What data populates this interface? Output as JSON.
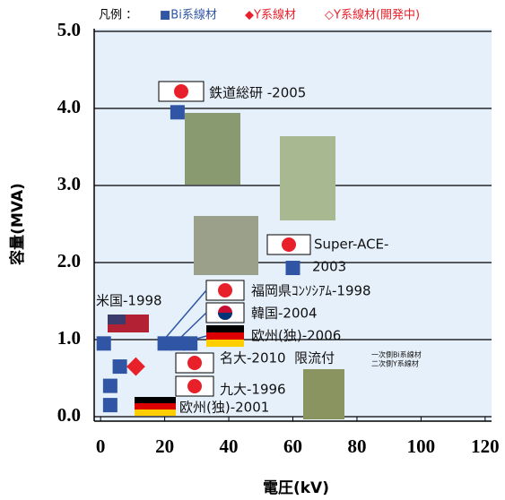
{
  "chart_data": {
    "type": "scatter",
    "x_label": "電圧(kV)",
    "y_label": "容量(MVA)",
    "legend_title": "凡例 ：",
    "xlim": [
      -2,
      122
    ],
    "ylim": [
      0,
      5
    ],
    "xticks": [
      0,
      20,
      40,
      60,
      80,
      100,
      120
    ],
    "yticks": [
      {
        "value": 0,
        "label": "0.0"
      },
      {
        "value": 1,
        "label": "1.0"
      },
      {
        "value": 2,
        "label": "2.0"
      },
      {
        "value": 3,
        "label": "3.0"
      },
      {
        "value": 4,
        "label": "4.0"
      },
      {
        "value": 5,
        "label": "5.0"
      }
    ],
    "grid": true,
    "series": [
      {
        "name": "■Bi系線材",
        "color": "#2f55a4",
        "marker": "square",
        "x": [
          24,
          60,
          1,
          20,
          24,
          28,
          6,
          3,
          3
        ],
        "values": [
          3.95,
          1.93,
          0.95,
          0.95,
          0.95,
          0.95,
          0.65,
          0.4,
          0.15
        ]
      },
      {
        "name": "◆Y系線材",
        "color": "#e8202a",
        "marker": "diamond",
        "x": [
          11
        ],
        "values": [
          0.65
        ]
      },
      {
        "name": "◇Y系線材(開発中)",
        "color": "#e8202a",
        "marker": "open-diamond",
        "x": [],
        "values": []
      }
    ],
    "annotations": [
      "鉄道総研 -2005",
      "Super-ACE-",
      "2003",
      "米国-1998",
      "福岡県ｺﾝｿｼｱﾑ-1998",
      "韓国-2004",
      "欧州(独)-2006",
      "名大-2010  限流付",
      "一次側Bi系線材",
      "二次側Y系線材",
      "九大-1996",
      "欧州(独)-2001"
    ]
  }
}
